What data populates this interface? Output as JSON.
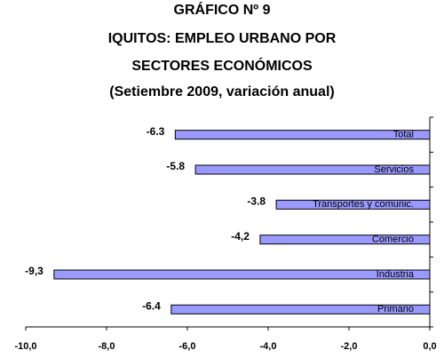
{
  "chart_data": {
    "type": "bar",
    "orientation": "horizontal",
    "title": [
      "GRÁFICO Nº 9",
      "IQUITOS: EMPLEO URBANO POR",
      "SECTORES ECONÓMICOS",
      "(Setiembre 2009, variación anual)"
    ],
    "categories": [
      "Total",
      "Servicios",
      "Transportes y comunic.",
      "Comercio",
      "Industria",
      "Primario"
    ],
    "values": [
      -6.3,
      -5.8,
      -3.8,
      -4.2,
      -9.3,
      -6.4
    ],
    "value_labels": [
      "-6.3",
      "-5.8",
      "-3.8",
      "-4,2",
      "-9,3",
      "-6.4"
    ],
    "color": "#9999ff",
    "xlim": [
      -10,
      0
    ],
    "xticks": [
      {
        "value": -10,
        "label": "-10,0"
      },
      {
        "value": -8,
        "label": "-8,0"
      },
      {
        "value": -6,
        "label": "-6,0"
      },
      {
        "value": -4,
        "label": "-4,0"
      },
      {
        "value": -2,
        "label": "-2,0"
      },
      {
        "value": 0,
        "label": "0,0"
      }
    ],
    "grid": false
  }
}
